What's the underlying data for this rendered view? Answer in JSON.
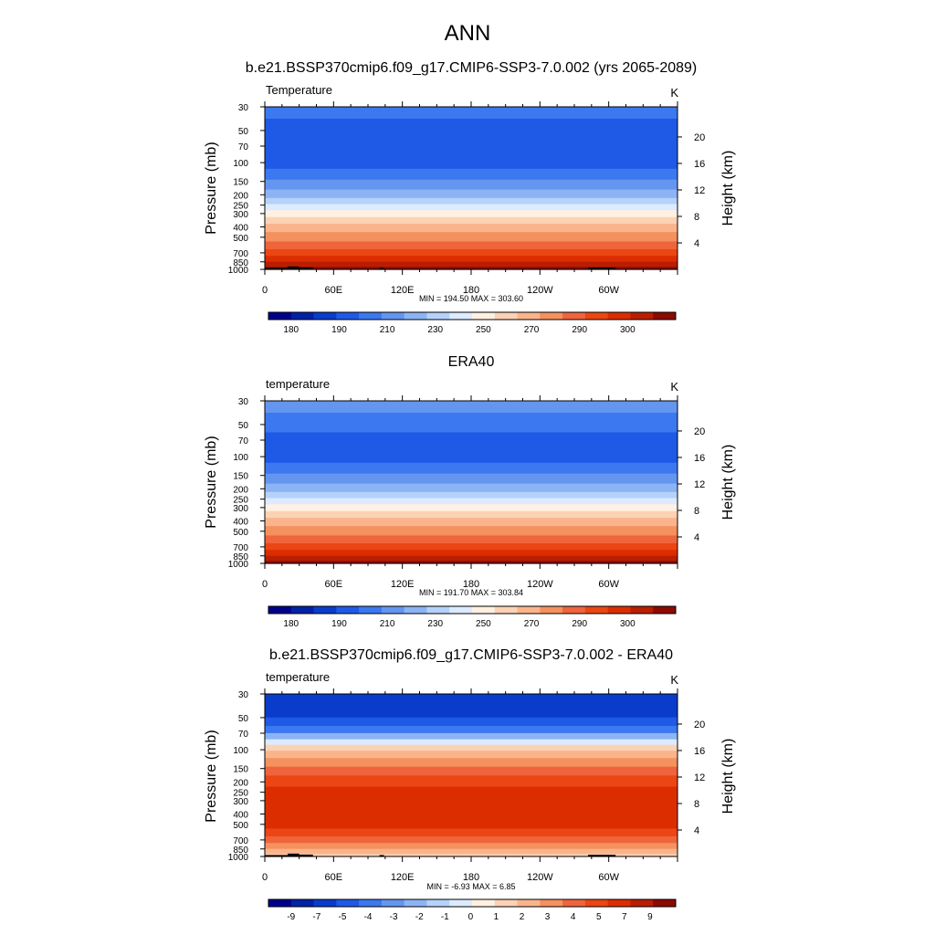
{
  "figure_title": "ANN",
  "chart_data": [
    {
      "type": "heatmap",
      "title": "b.e21.BSSP370cmip6.f09_g17.CMIP6-SSP3-7.0.002 (yrs 2065-2089)",
      "left_label": "Temperature",
      "units": "K",
      "ylabel": "Pressure (mb)",
      "ylabel_right": "Height (km)",
      "pressure_ticks": [
        30,
        50,
        70,
        100,
        150,
        200,
        250,
        300,
        400,
        500,
        700,
        850,
        1000
      ],
      "height_ticks": [
        4,
        8,
        12,
        16,
        20
      ],
      "longitude_ticks": [
        "0",
        "60E",
        "120E",
        "180",
        "120W",
        "60W"
      ],
      "ylim": [
        30,
        1000
      ],
      "stats_text": "MIN = 194.50  MAX = 303.60",
      "min": 194.5,
      "max": 303.6,
      "colorbar_labels": [
        "180",
        "190",
        "210",
        "230",
        "250",
        "270",
        "290",
        "300"
      ],
      "colorbar_colors": [
        "#00008a",
        "#0022a6",
        "#0a3ccc",
        "#1e5ae6",
        "#3c78f0",
        "#6496f0",
        "#8cb4f5",
        "#b4d2fa",
        "#dcebff",
        "#fff0e1",
        "#fcd2b4",
        "#fab48c",
        "#f5915f",
        "#f0643c",
        "#eb4614",
        "#dc2d00",
        "#b91e00",
        "#8c0a00"
      ],
      "levels": [
        {
          "p": 30,
          "bin": 4
        },
        {
          "p": 50,
          "bin": 3
        },
        {
          "p": 70,
          "bin": 3
        },
        {
          "p": 100,
          "bin": 3
        },
        {
          "p": 130,
          "bin": 4
        },
        {
          "p": 160,
          "bin": 5
        },
        {
          "p": 200,
          "bin": 6
        },
        {
          "p": 230,
          "bin": 7
        },
        {
          "p": 260,
          "bin": 8
        },
        {
          "p": 300,
          "bin": 9
        },
        {
          "p": 350,
          "bin": 10
        },
        {
          "p": 400,
          "bin": 11
        },
        {
          "p": 500,
          "bin": 12
        },
        {
          "p": 600,
          "bin": 13
        },
        {
          "p": 700,
          "bin": 14
        },
        {
          "p": 800,
          "bin": 15
        },
        {
          "p": 900,
          "bin": 16
        },
        {
          "p": 1000,
          "bin": 17
        }
      ],
      "terrain_segments": [
        {
          "lon": [
            0,
            20
          ],
          "top_p": 970
        },
        {
          "lon": [
            20,
            30
          ],
          "top_p": 940
        },
        {
          "lon": [
            30,
            42
          ],
          "top_p": 960
        },
        {
          "lon": [
            100,
            104
          ],
          "top_p": 970
        },
        {
          "lon": [
            282,
            306
          ],
          "top_p": 965
        }
      ]
    },
    {
      "type": "heatmap",
      "title": "ERA40",
      "left_label": "temperature",
      "units": "K",
      "ylabel": "Pressure (mb)",
      "ylabel_right": "Height (km)",
      "pressure_ticks": [
        30,
        50,
        70,
        100,
        150,
        200,
        250,
        300,
        400,
        500,
        700,
        850,
        1000
      ],
      "height_ticks": [
        4,
        8,
        12,
        16,
        20
      ],
      "longitude_ticks": [
        "0",
        "60E",
        "120E",
        "180",
        "120W",
        "60W"
      ],
      "ylim": [
        30,
        1000
      ],
      "stats_text": "MIN = 191.70  MAX = 303.84",
      "min": 191.7,
      "max": 303.84,
      "colorbar_labels": [
        "180",
        "190",
        "210",
        "230",
        "250",
        "270",
        "290",
        "300"
      ],
      "colorbar_colors": [
        "#00008a",
        "#0022a6",
        "#0a3ccc",
        "#1e5ae6",
        "#3c78f0",
        "#6496f0",
        "#8cb4f5",
        "#b4d2fa",
        "#dcebff",
        "#fff0e1",
        "#fcd2b4",
        "#fab48c",
        "#f5915f",
        "#f0643c",
        "#eb4614",
        "#dc2d00",
        "#b91e00",
        "#8c0a00"
      ],
      "levels": [
        {
          "p": 30,
          "bin": 5
        },
        {
          "p": 50,
          "bin": 4
        },
        {
          "p": 70,
          "bin": 3
        },
        {
          "p": 100,
          "bin": 3
        },
        {
          "p": 130,
          "bin": 4
        },
        {
          "p": 160,
          "bin": 5
        },
        {
          "p": 200,
          "bin": 6
        },
        {
          "p": 230,
          "bin": 7
        },
        {
          "p": 260,
          "bin": 8
        },
        {
          "p": 300,
          "bin": 9
        },
        {
          "p": 350,
          "bin": 10
        },
        {
          "p": 400,
          "bin": 11
        },
        {
          "p": 500,
          "bin": 12
        },
        {
          "p": 600,
          "bin": 13
        },
        {
          "p": 700,
          "bin": 14
        },
        {
          "p": 800,
          "bin": 15
        },
        {
          "p": 900,
          "bin": 16
        },
        {
          "p": 1000,
          "bin": 17
        }
      ],
      "terrain_segments": []
    },
    {
      "type": "heatmap",
      "title": "b.e21.BSSP370cmip6.f09_g17.CMIP6-SSP3-7.0.002 - ERA40",
      "left_label": "temperature",
      "units": "K",
      "ylabel": "Pressure (mb)",
      "ylabel_right": "Height (km)",
      "pressure_ticks": [
        30,
        50,
        70,
        100,
        150,
        200,
        250,
        300,
        400,
        500,
        700,
        850,
        1000
      ],
      "height_ticks": [
        4,
        8,
        12,
        16,
        20
      ],
      "longitude_ticks": [
        "0",
        "60E",
        "120E",
        "180",
        "120W",
        "60W"
      ],
      "ylim": [
        30,
        1000
      ],
      "stats_text": "MIN =  -6.93  MAX =   6.85",
      "min": -6.93,
      "max": 6.85,
      "colorbar_labels": [
        "-9",
        "-7",
        "-5",
        "-4",
        "-3",
        "-2",
        "-1",
        "0",
        "1",
        "2",
        "3",
        "4",
        "5",
        "7",
        "9"
      ],
      "colorbar_colors": [
        "#00008a",
        "#0022a6",
        "#0a3ccc",
        "#1e5ae6",
        "#3c78f0",
        "#6496f0",
        "#8cb4f5",
        "#b4d2fa",
        "#dcebff",
        "#fff0e1",
        "#fcd2b4",
        "#fab48c",
        "#f5915f",
        "#f0643c",
        "#eb4614",
        "#dc2d00",
        "#b91e00",
        "#8c0a00"
      ],
      "levels": [
        {
          "p": 30,
          "bin": 2
        },
        {
          "p": 45,
          "bin": 2
        },
        {
          "p": 55,
          "bin": 3
        },
        {
          "p": 65,
          "bin": 4
        },
        {
          "p": 75,
          "bin": 6
        },
        {
          "p": 85,
          "bin": 8
        },
        {
          "p": 95,
          "bin": 10
        },
        {
          "p": 110,
          "bin": 11
        },
        {
          "p": 130,
          "bin": 12
        },
        {
          "p": 160,
          "bin": 13
        },
        {
          "p": 190,
          "bin": 14
        },
        {
          "p": 260,
          "bin": 15
        },
        {
          "p": 500,
          "bin": 15
        },
        {
          "p": 600,
          "bin": 14
        },
        {
          "p": 700,
          "bin": 13
        },
        {
          "p": 800,
          "bin": 12
        },
        {
          "p": 900,
          "bin": 11
        },
        {
          "p": 1000,
          "bin": 10
        }
      ],
      "terrain_segments": [
        {
          "lon": [
            0,
            20
          ],
          "top_p": 970
        },
        {
          "lon": [
            20,
            30
          ],
          "top_p": 940
        },
        {
          "lon": [
            30,
            42
          ],
          "top_p": 960
        },
        {
          "lon": [
            100,
            104
          ],
          "top_p": 970
        },
        {
          "lon": [
            282,
            306
          ],
          "top_p": 965
        }
      ]
    }
  ]
}
